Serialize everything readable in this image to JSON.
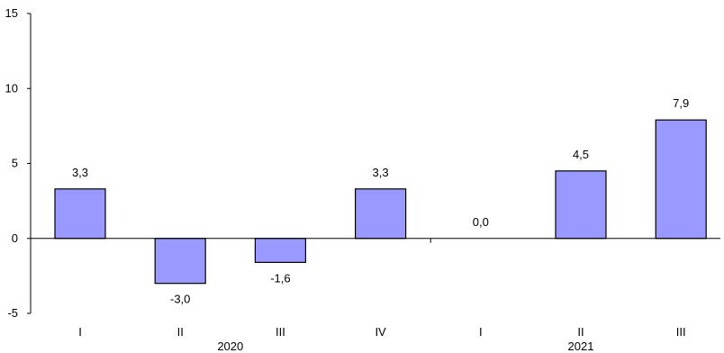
{
  "chart_data": {
    "type": "bar",
    "categories": [
      "I",
      "II",
      "III",
      "IV",
      "I",
      "II",
      "III"
    ],
    "year_groups": [
      {
        "label": "2020",
        "categories": [
          "I",
          "II",
          "III",
          "IV"
        ]
      },
      {
        "label": "2021",
        "categories": [
          "I",
          "II",
          "III"
        ]
      }
    ],
    "values": [
      3.3,
      -3.0,
      -1.6,
      3.3,
      0.0,
      4.5,
      7.9
    ],
    "data_labels": [
      "3,3",
      "-3,0",
      "-1,6",
      "3,3",
      "0,0",
      "4,5",
      "7,9"
    ],
    "y_ticks": [
      -5,
      0,
      5,
      10,
      15
    ],
    "ylim": [
      -5,
      15
    ],
    "title": "",
    "xlabel": "",
    "ylabel": "",
    "grid": false,
    "colors": {
      "bar_fill": "#9999ff",
      "bar_stroke": "#000000",
      "axis": "#000000"
    }
  }
}
